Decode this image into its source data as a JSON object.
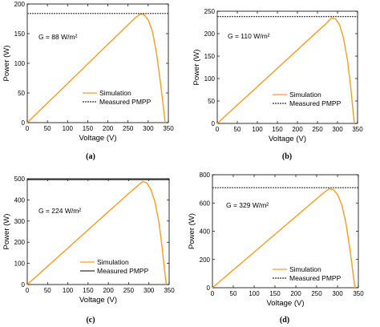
{
  "chart_data": [
    {
      "type": "line",
      "panel_label": "(a)",
      "xlabel": "Voltage (V)",
      "ylabel": "Power (W)",
      "xlim": [
        0,
        350
      ],
      "ylim": [
        0,
        200
      ],
      "xticks": [
        0,
        50,
        100,
        150,
        200,
        250,
        300,
        350
      ],
      "yticks": [
        0,
        50,
        100,
        150,
        200
      ],
      "annotation": "G = 88 W/m²",
      "legend_position": "lower-right",
      "series": [
        {
          "name": "Simulation",
          "color": "#ff9a1a",
          "style": "solid",
          "x": [
            0,
            50,
            100,
            150,
            200,
            250,
            270,
            280,
            290,
            300,
            310,
            320,
            330,
            337,
            342
          ],
          "y": [
            0,
            33,
            66,
            99,
            132,
            165,
            178,
            183,
            182,
            173,
            155,
            120,
            70,
            30,
            0
          ]
        },
        {
          "name": "Measured PMPP",
          "color": "#333333",
          "style": "dashed",
          "x": [
            0,
            350
          ],
          "y": [
            184,
            184
          ]
        }
      ]
    },
    {
      "type": "line",
      "panel_label": "(b)",
      "xlabel": "Voltage (V)",
      "ylabel": "Power (W)",
      "xlim": [
        0,
        350
      ],
      "ylim": [
        0,
        250
      ],
      "xticks": [
        0,
        50,
        100,
        150,
        200,
        250,
        300,
        350
      ],
      "yticks": [
        0,
        50,
        100,
        150,
        200,
        250
      ],
      "annotation": "G = 110 W/m²",
      "legend_position": "lower-right",
      "series": [
        {
          "name": "Simulation",
          "color": "#ff9a1a",
          "style": "solid",
          "x": [
            0,
            50,
            100,
            150,
            200,
            250,
            270,
            285,
            295,
            305,
            315,
            325,
            333,
            338,
            342
          ],
          "y": [
            0,
            41,
            82,
            123,
            164,
            205,
            221,
            235,
            233,
            220,
            190,
            140,
            80,
            35,
            0
          ]
        },
        {
          "name": "Measured PMPP",
          "color": "#333333",
          "style": "dashed",
          "x": [
            0,
            350
          ],
          "y": [
            238,
            238
          ]
        }
      ]
    },
    {
      "type": "line",
      "panel_label": "(c)",
      "xlabel": "Voltage (V)",
      "ylabel": "Power (W)",
      "xlim": [
        0,
        350
      ],
      "ylim": [
        0,
        500
      ],
      "xticks": [
        0,
        50,
        100,
        150,
        200,
        250,
        300,
        350
      ],
      "yticks": [
        0,
        100,
        200,
        300,
        400,
        500
      ],
      "annotation": "G = 224 W/m²",
      "legend_position": "lower-right",
      "series": [
        {
          "name": "Simulation",
          "color": "#ff9a1a",
          "style": "solid",
          "x": [
            0,
            50,
            100,
            150,
            200,
            250,
            270,
            285,
            295,
            305,
            315,
            325,
            333,
            338,
            343
          ],
          "y": [
            0,
            86,
            172,
            258,
            344,
            430,
            463,
            487,
            480,
            450,
            390,
            290,
            170,
            80,
            0
          ]
        },
        {
          "name": "Measured PMPP",
          "color": "#333333",
          "style": "solid",
          "x": [
            0,
            350
          ],
          "y": [
            496,
            496
          ]
        }
      ]
    },
    {
      "type": "line",
      "panel_label": "(d)",
      "xlabel": "Voltage (V)",
      "ylabel": "Power (W)",
      "xlim": [
        0,
        350
      ],
      "ylim": [
        0,
        800
      ],
      "xticks": [
        0,
        50,
        100,
        150,
        200,
        250,
        300,
        350
      ],
      "yticks": [
        0,
        200,
        400,
        600,
        800
      ],
      "annotation": "G = 329 W/m²",
      "legend_position": "lower-right",
      "series": [
        {
          "name": "Simulation",
          "color": "#ff9a1a",
          "style": "solid",
          "x": [
            0,
            50,
            100,
            150,
            200,
            250,
            270,
            280,
            290,
            300,
            310,
            320,
            330,
            337,
            342
          ],
          "y": [
            0,
            126,
            252,
            378,
            504,
            630,
            680,
            700,
            695,
            660,
            590,
            460,
            270,
            110,
            0
          ]
        },
        {
          "name": "Measured PMPP",
          "color": "#333333",
          "style": "dashed",
          "x": [
            0,
            350
          ],
          "y": [
            708,
            708
          ]
        }
      ]
    }
  ]
}
